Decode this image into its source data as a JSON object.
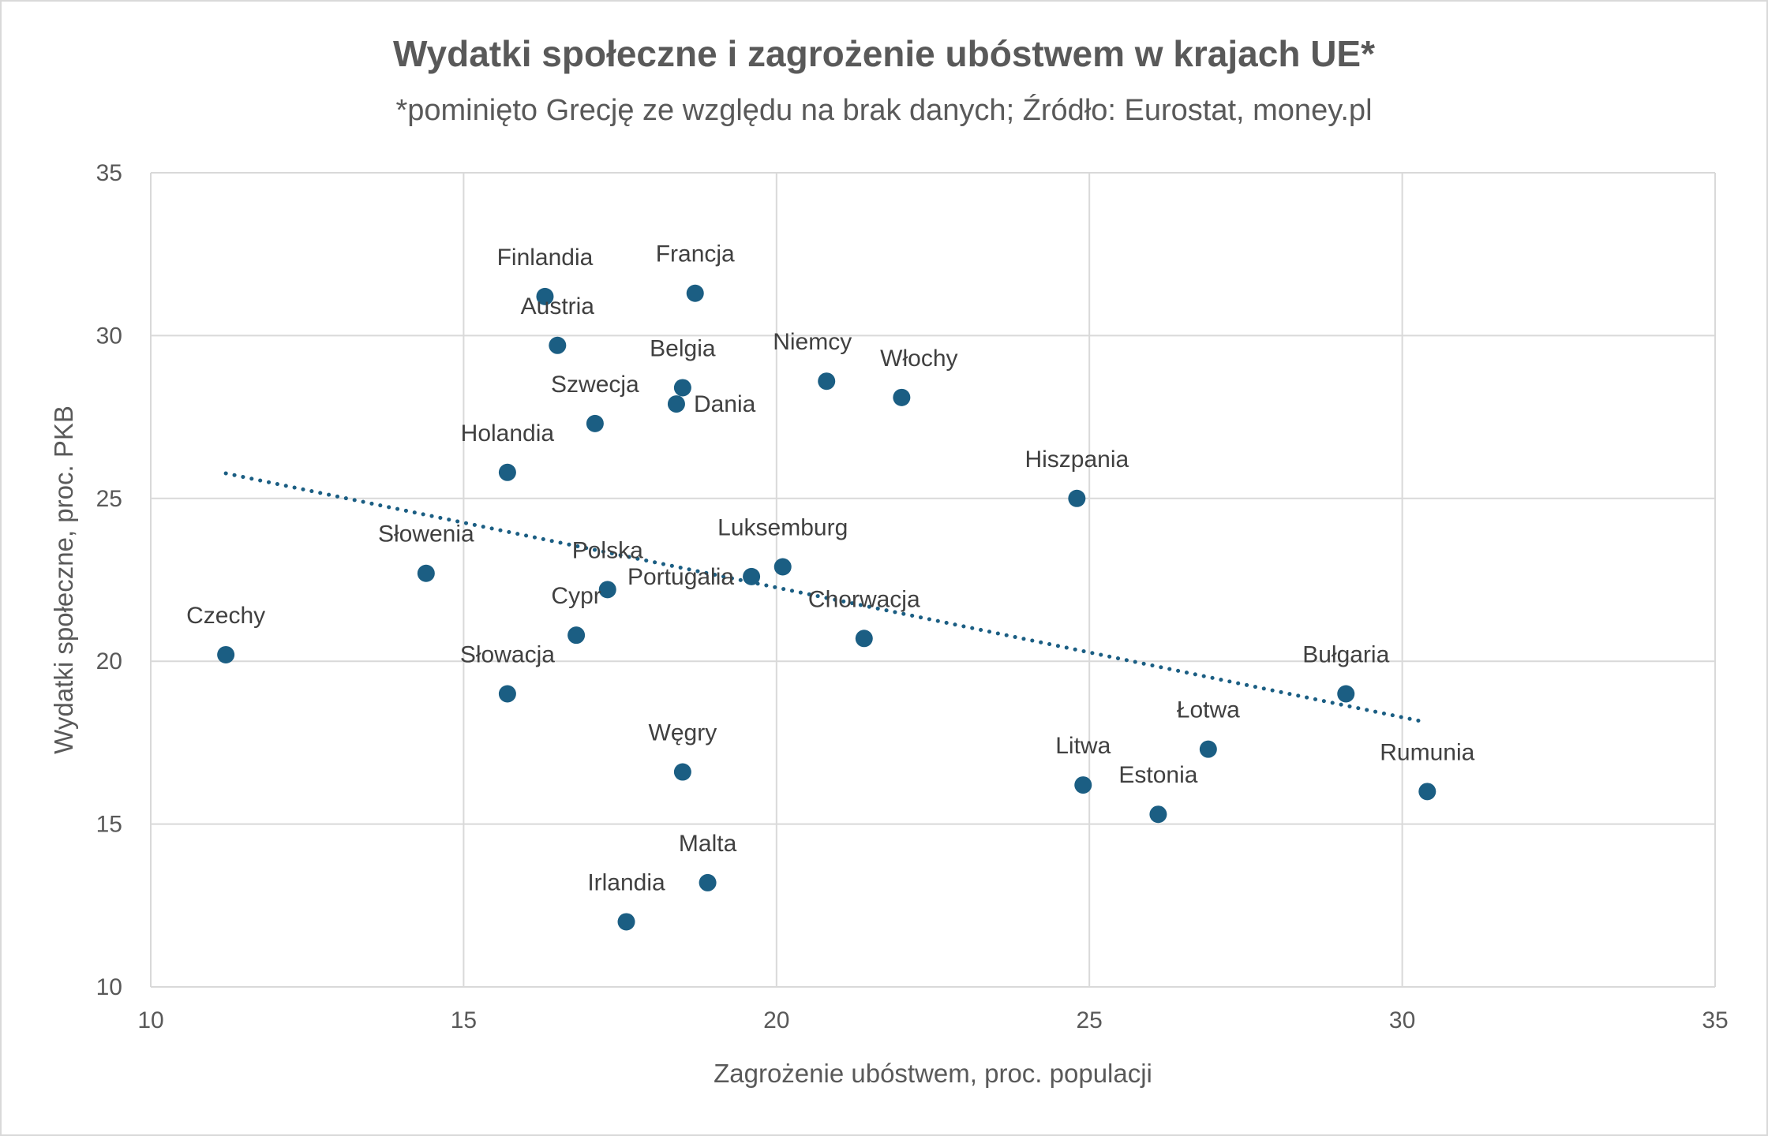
{
  "chart_data": {
    "type": "scatter",
    "title": "Wydatki społeczne i zagrożenie ubóstwem w krajach UE*",
    "subtitle": "*pominięto Grecję ze względu na brak danych; Źródło: Eurostat, money.pl",
    "xlabel": "Zagrożenie ubóstwem, proc. populacji",
    "ylabel": "Wydatki społeczne, proc. PKB",
    "xlim": [
      10,
      35
    ],
    "ylim": [
      10,
      35
    ],
    "xticks": [
      10,
      15,
      20,
      25,
      30,
      35
    ],
    "yticks": [
      10,
      15,
      20,
      25,
      30,
      35
    ],
    "grid": true,
    "legend": "none",
    "colors": {
      "points": "#1B5E83",
      "trendline": "#1B5E83",
      "grid": "#D9D9D9",
      "text": "#595959"
    },
    "trendline": {
      "type": "linear",
      "style": "dotted",
      "x": [
        11.2,
        30.3
      ],
      "y": [
        25.77,
        18.16
      ]
    },
    "points": [
      {
        "label": "Czechy",
        "x": 11.2,
        "y": 20.2
      },
      {
        "label": "Finlandia",
        "x": 16.3,
        "y": 31.2
      },
      {
        "label": "Francja",
        "x": 18.7,
        "y": 31.3
      },
      {
        "label": "Austria",
        "x": 16.5,
        "y": 29.7
      },
      {
        "label": "Belgia",
        "x": 18.5,
        "y": 28.4
      },
      {
        "label": "Dania",
        "x": 18.4,
        "y": 27.9
      },
      {
        "label": "Szwecja",
        "x": 17.1,
        "y": 27.3
      },
      {
        "label": "Niemcy",
        "x": 20.8,
        "y": 28.6
      },
      {
        "label": "Włochy",
        "x": 22.0,
        "y": 28.1
      },
      {
        "label": "Holandia",
        "x": 15.7,
        "y": 25.8
      },
      {
        "label": "Hiszpania",
        "x": 24.8,
        "y": 25.0
      },
      {
        "label": "Słowenia",
        "x": 14.4,
        "y": 22.7
      },
      {
        "label": "Luksemburg",
        "x": 20.1,
        "y": 22.9
      },
      {
        "label": "Portugalia",
        "x": 19.6,
        "y": 22.6
      },
      {
        "label": "Polska",
        "x": 17.3,
        "y": 22.2
      },
      {
        "label": "Cypr",
        "x": 16.8,
        "y": 20.8
      },
      {
        "label": "Chorwacja",
        "x": 21.4,
        "y": 20.7
      },
      {
        "label": "Słowacja",
        "x": 15.7,
        "y": 19.0
      },
      {
        "label": "Bułgaria",
        "x": 29.1,
        "y": 19.0
      },
      {
        "label": "Węgry",
        "x": 18.5,
        "y": 16.6
      },
      {
        "label": "Łotwa",
        "x": 26.9,
        "y": 17.3
      },
      {
        "label": "Litwa",
        "x": 24.9,
        "y": 16.2
      },
      {
        "label": "Rumunia",
        "x": 30.4,
        "y": 16.0
      },
      {
        "label": "Estonia",
        "x": 26.1,
        "y": 15.3
      },
      {
        "label": "Malta",
        "x": 18.9,
        "y": 13.2
      },
      {
        "label": "Irlandia",
        "x": 17.6,
        "y": 12.0
      }
    ]
  }
}
